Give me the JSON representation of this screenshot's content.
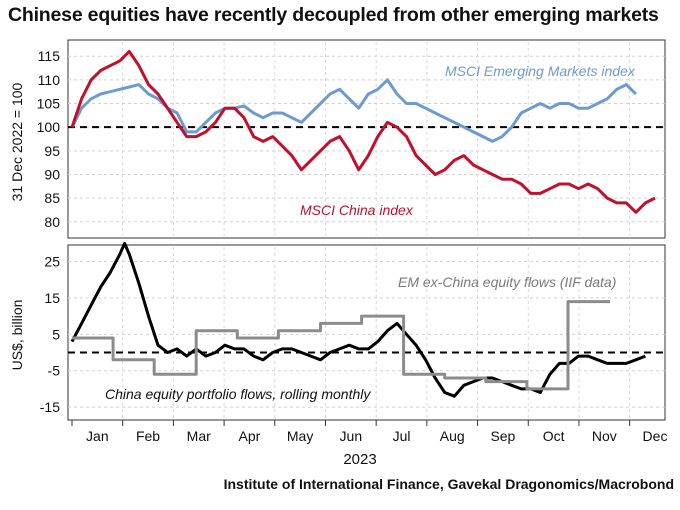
{
  "title": "Chinese equities have recently decoupled from other emerging markets",
  "source": "Institute of International Finance, Gavekal Dragonomics/Macrobond",
  "chart_data": [
    {
      "type": "line",
      "ylabel": "31 Dec 2022 = 100",
      "ylim": [
        77,
        118
      ],
      "yticks": [
        80,
        85,
        90,
        95,
        100,
        105,
        110,
        115
      ],
      "reference_line": 100,
      "x_range_weeks": [
        0,
        52
      ],
      "series": [
        {
          "name": "MSCI Emerging Markets index",
          "color": "#6d9ad0",
          "points": [
            [
              0,
              100
            ],
            [
              1,
              104
            ],
            [
              2,
              106
            ],
            [
              3,
              107
            ],
            [
              4,
              107.5
            ],
            [
              5,
              108
            ],
            [
              6,
              108.5
            ],
            [
              7,
              109
            ],
            [
              8,
              107
            ],
            [
              9,
              106
            ],
            [
              10,
              104
            ],
            [
              11,
              103
            ],
            [
              12,
              99
            ],
            [
              13,
              99
            ],
            [
              14,
              101
            ],
            [
              15,
              103
            ],
            [
              16,
              104
            ],
            [
              17,
              104
            ],
            [
              18,
              104.5
            ],
            [
              19,
              103
            ],
            [
              20,
              102
            ],
            [
              21,
              103
            ],
            [
              22,
              103
            ],
            [
              23,
              102
            ],
            [
              24,
              101
            ],
            [
              25,
              103
            ],
            [
              26,
              105
            ],
            [
              27,
              107
            ],
            [
              28,
              108
            ],
            [
              29,
              106
            ],
            [
              30,
              104
            ],
            [
              31,
              107
            ],
            [
              32,
              108
            ],
            [
              33,
              110
            ],
            [
              34,
              107
            ],
            [
              35,
              105
            ],
            [
              36,
              105
            ],
            [
              37,
              104
            ],
            [
              38,
              103
            ],
            [
              39,
              102
            ],
            [
              40,
              101
            ],
            [
              41,
              100
            ],
            [
              42,
              99
            ],
            [
              43,
              98
            ],
            [
              44,
              97
            ],
            [
              45,
              98
            ],
            [
              46,
              100
            ],
            [
              47,
              103
            ],
            [
              48,
              104
            ],
            [
              49,
              105
            ],
            [
              50,
              104
            ],
            [
              51,
              105
            ],
            [
              52,
              105
            ],
            [
              53,
              104
            ],
            [
              54,
              104
            ],
            [
              55,
              105
            ],
            [
              56,
              106
            ],
            [
              57,
              108
            ],
            [
              58,
              109
            ],
            [
              59,
              107
            ]
          ]
        },
        {
          "name": "MSCI China index",
          "color": "#c0102c",
          "points": [
            [
              0,
              100
            ],
            [
              1,
              106
            ],
            [
              2,
              110
            ],
            [
              3,
              112
            ],
            [
              4,
              113
            ],
            [
              5,
              114
            ],
            [
              6,
              116
            ],
            [
              7,
              113
            ],
            [
              8,
              109
            ],
            [
              9,
              107
            ],
            [
              10,
              104
            ],
            [
              11,
              101
            ],
            [
              12,
              98
            ],
            [
              13,
              98
            ],
            [
              14,
              99
            ],
            [
              15,
              101
            ],
            [
              16,
              104
            ],
            [
              17,
              104
            ],
            [
              18,
              102
            ],
            [
              19,
              98
            ],
            [
              20,
              97
            ],
            [
              21,
              98
            ],
            [
              22,
              96
            ],
            [
              23,
              94
            ],
            [
              24,
              91
            ],
            [
              25,
              93
            ],
            [
              26,
              95
            ],
            [
              27,
              97
            ],
            [
              28,
              98
            ],
            [
              29,
              95
            ],
            [
              30,
              91
            ],
            [
              31,
              94
            ],
            [
              32,
              98
            ],
            [
              33,
              101
            ],
            [
              34,
              100
            ],
            [
              35,
              98
            ],
            [
              36,
              94
            ],
            [
              37,
              92
            ],
            [
              38,
              90
            ],
            [
              39,
              91
            ],
            [
              40,
              93
            ],
            [
              41,
              94
            ],
            [
              42,
              92
            ],
            [
              43,
              91
            ],
            [
              44,
              90
            ],
            [
              45,
              89
            ],
            [
              46,
              89
            ],
            [
              47,
              88
            ],
            [
              48,
              86
            ],
            [
              49,
              86
            ],
            [
              50,
              87
            ],
            [
              51,
              88
            ],
            [
              52,
              88
            ],
            [
              53,
              87
            ],
            [
              54,
              88
            ],
            [
              55,
              87
            ],
            [
              56,
              85
            ],
            [
              57,
              84
            ],
            [
              58,
              84
            ],
            [
              59,
              82
            ],
            [
              60,
              84
            ],
            [
              61,
              85
            ]
          ]
        }
      ]
    },
    {
      "type": "line",
      "ylabel": "US$, billion",
      "ylim": [
        -18,
        29
      ],
      "yticks": [
        -15,
        -5,
        5,
        15,
        25
      ],
      "reference_line": 0,
      "series": [
        {
          "name": "China equity portfolio flows, rolling monthly",
          "color": "#000000",
          "points": [
            [
              0,
              3
            ],
            [
              1,
              8
            ],
            [
              2,
              13
            ],
            [
              3,
              18
            ],
            [
              4,
              22
            ],
            [
              5,
              27
            ],
            [
              5.5,
              30
            ],
            [
              6,
              27
            ],
            [
              7,
              19
            ],
            [
              8,
              10
            ],
            [
              9,
              2
            ],
            [
              10,
              0
            ],
            [
              11,
              1
            ],
            [
              12,
              -1
            ],
            [
              13,
              1
            ],
            [
              14,
              -1
            ],
            [
              15,
              0
            ],
            [
              16,
              2
            ],
            [
              17,
              1
            ],
            [
              18,
              1
            ],
            [
              19,
              -1
            ],
            [
              20,
              -2
            ],
            [
              21,
              0
            ],
            [
              22,
              1
            ],
            [
              23,
              1
            ],
            [
              24,
              0
            ],
            [
              25,
              -1
            ],
            [
              26,
              -2
            ],
            [
              27,
              0
            ],
            [
              28,
              1
            ],
            [
              29,
              2
            ],
            [
              30,
              1
            ],
            [
              31,
              1
            ],
            [
              32,
              3
            ],
            [
              33,
              6
            ],
            [
              34,
              8
            ],
            [
              35,
              5
            ],
            [
              36,
              2
            ],
            [
              37,
              -2
            ],
            [
              38,
              -7
            ],
            [
              39,
              -11
            ],
            [
              40,
              -12
            ],
            [
              41,
              -9
            ],
            [
              42,
              -8
            ],
            [
              43,
              -7
            ],
            [
              44,
              -7
            ],
            [
              45,
              -8
            ],
            [
              46,
              -9
            ],
            [
              47,
              -10
            ],
            [
              48,
              -10
            ],
            [
              49,
              -11
            ],
            [
              50,
              -6
            ],
            [
              51,
              -3
            ],
            [
              52,
              -3
            ],
            [
              53,
              -1
            ],
            [
              54,
              -1
            ],
            [
              55,
              -2
            ],
            [
              56,
              -3
            ],
            [
              57,
              -3
            ],
            [
              58,
              -3
            ],
            [
              59,
              -2
            ],
            [
              60,
              -1
            ]
          ]
        },
        {
          "name": "EM ex-China equity flows (IIF data)",
          "color": "#8c8c8c",
          "points": [
            [
              0,
              4
            ],
            [
              4.3,
              4
            ],
            [
              4.3,
              -2
            ],
            [
              8.6,
              -2
            ],
            [
              8.6,
              -6
            ],
            [
              13,
              -6
            ],
            [
              13,
              6
            ],
            [
              17.3,
              6
            ],
            [
              17.3,
              4
            ],
            [
              21.6,
              4
            ],
            [
              21.6,
              6
            ],
            [
              26,
              6
            ],
            [
              26,
              8
            ],
            [
              30.3,
              8
            ],
            [
              30.3,
              10
            ],
            [
              34.7,
              10
            ],
            [
              34.7,
              -6
            ],
            [
              39,
              -6
            ],
            [
              39,
              -7
            ],
            [
              43.3,
              -7
            ],
            [
              43.3,
              -8
            ],
            [
              47.6,
              -8
            ],
            [
              47.6,
              -10
            ],
            [
              51.9,
              -10
            ],
            [
              51.9,
              14
            ],
            [
              56.3,
              14
            ]
          ]
        }
      ]
    }
  ],
  "x_axis": {
    "months": [
      "Jan",
      "Feb",
      "Mar",
      "Apr",
      "May",
      "Jun",
      "Jul",
      "Aug",
      "Sep",
      "Oct",
      "Nov",
      "Dec"
    ],
    "year": "2023"
  }
}
